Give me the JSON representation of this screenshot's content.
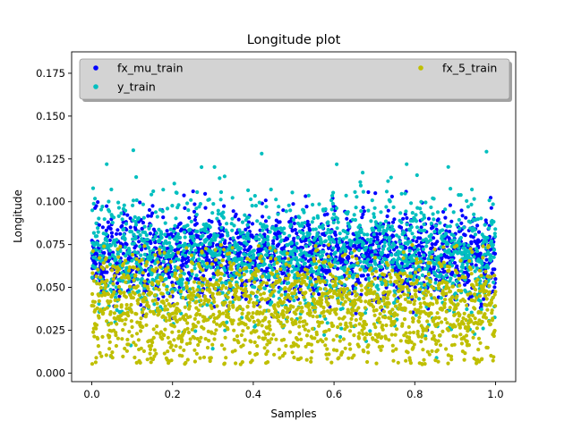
{
  "chart_data": {
    "type": "scatter",
    "title": "Longitude plot",
    "xlabel": "Samples",
    "ylabel": "Longitude",
    "xlim": [
      -0.05,
      1.05
    ],
    "ylim": [
      -0.005,
      0.1875
    ],
    "x_ticks": [
      0.0,
      0.2,
      0.4,
      0.6,
      0.8,
      1.0
    ],
    "x_tick_labels": [
      "0.0",
      "0.2",
      "0.4",
      "0.6",
      "0.8",
      "1.0"
    ],
    "y_ticks": [
      0.0,
      0.025,
      0.05,
      0.075,
      0.1,
      0.125,
      0.15,
      0.175
    ],
    "y_tick_labels": [
      "0.000",
      "0.025",
      "0.050",
      "0.075",
      "0.100",
      "0.125",
      "0.150",
      "0.175"
    ],
    "grid": false,
    "legend": "top, spanning width (two columns)",
    "series": [
      {
        "name": "fx_mu_train",
        "color": "#0000ff",
        "x_range": [
          0.0,
          1.0
        ],
        "y_mean": 0.068,
        "y_spread": 0.012,
        "y_min": 0.025,
        "y_max": 0.115,
        "n_points": 1700
      },
      {
        "name": "y_train",
        "color": "#00bfbf",
        "x_range": [
          0.0,
          1.0
        ],
        "y_mean": 0.068,
        "y_spread": 0.018,
        "y_min": 0.005,
        "y_max": 0.131,
        "n_points": 1700
      },
      {
        "name": "fx_5_train",
        "color": "#bfbf00",
        "x_range": [
          0.0,
          1.0
        ],
        "y_mean": 0.038,
        "y_spread": 0.016,
        "y_min": 0.005,
        "y_max": 0.075,
        "n_points": 1700
      }
    ]
  }
}
